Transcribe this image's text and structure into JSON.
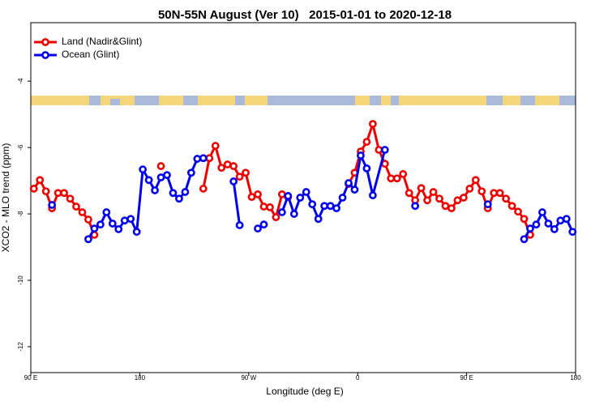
{
  "chart_data": {
    "type": "line",
    "title": "50N-55N August (Ver 10)   2015-01-01 to 2020-12-18",
    "xlabel": "Longitude (deg E)",
    "ylabel": "XCO2 - MLO trend (ppm)",
    "xlim": [
      90,
      540
    ],
    "ylim": [
      -12.78,
      -2.24
    ],
    "xticks": [
      {
        "value": 90,
        "label": "90 E"
      },
      {
        "value": 180,
        "label": "180"
      },
      {
        "value": 270,
        "label": "90 W"
      },
      {
        "value": 360,
        "label": "0"
      },
      {
        "value": 450,
        "label": "90 E"
      },
      {
        "value": 540,
        "label": "180"
      }
    ],
    "yticks": [
      -4,
      -6,
      -8,
      -10,
      -12
    ],
    "legend": "upper left",
    "series": [
      {
        "name": "Land (Nadir&Glint)",
        "color": "#ee0000",
        "x": [
          92.5,
          97.5,
          102.5,
          107.5,
          112.5,
          117.5,
          122.5,
          127.5,
          132.5,
          137.5,
          142.5,
          null,
          197.5,
          null,
          232.5,
          237.5,
          242.5,
          247.5,
          252.5,
          257.5,
          262.5,
          267.5,
          272.5,
          277.5,
          282.5,
          287.5,
          292.5,
          297.5,
          302.5,
          null,
          352.5,
          357.5,
          362.5,
          367.5,
          372.5,
          377.5,
          382.5,
          387.5,
          392.5,
          397.5,
          402.5,
          407.5,
          412.5,
          417.5,
          422.5,
          427.5,
          432.5,
          437.5,
          442.5,
          447.5,
          452.5,
          457.5,
          462.5,
          467.5,
          472.5,
          477.5,
          482.5,
          487.5,
          492.5,
          497.5,
          502.5
        ],
        "values": [
          -7.24,
          -6.98,
          -7.32,
          -7.83,
          -7.37,
          -7.37,
          -7.54,
          -7.78,
          -7.95,
          -8.17,
          -8.63,
          null,
          -6.56,
          null,
          -7.24,
          -6.32,
          -5.95,
          -6.61,
          -6.51,
          -6.56,
          -6.88,
          -6.76,
          -7.49,
          -7.41,
          -7.78,
          -7.8,
          -8.1,
          -7.41,
          -7.49,
          null,
          -7.1,
          -6.76,
          -6.12,
          -5.83,
          -5.29,
          -6.07,
          -6.49,
          -6.93,
          -6.93,
          -6.8,
          -7.37,
          -7.59,
          -7.22,
          -7.59,
          -7.34,
          -7.54,
          -7.76,
          -7.83,
          -7.59,
          -7.51,
          -7.24,
          -6.98,
          -7.32,
          -7.83,
          -7.37,
          -7.37,
          -7.54,
          -7.76,
          -7.93,
          -8.15,
          -8.63
        ]
      },
      {
        "name": "Ocean (Glint)",
        "color": "#0000ee",
        "x": [
          107.5,
          null,
          137.5,
          142.5,
          147.5,
          152.5,
          157.5,
          162.5,
          167.5,
          172.5,
          177.5,
          182.5,
          187.5,
          192.5,
          197.5,
          202.5,
          207.5,
          212.5,
          217.5,
          222.5,
          227.5,
          232.5,
          null,
          257.5,
          262.5,
          null,
          277.5,
          282.5,
          null,
          297.5,
          302.5,
          307.5,
          312.5,
          317.5,
          322.5,
          327.5,
          332.5,
          337.5,
          342.5,
          347.5,
          352.5,
          357.5,
          362.5,
          367.5,
          372.5,
          382.5,
          null,
          407.5,
          null,
          467.5,
          null,
          497.5,
          502.5,
          507.5,
          512.5,
          517.5,
          522.5,
          527.5,
          532.5,
          537.5
        ],
        "values": [
          -7.73,
          null,
          -8.76,
          -8.44,
          -8.32,
          -7.95,
          -8.29,
          -8.46,
          -8.2,
          -8.15,
          -8.54,
          -6.66,
          -6.98,
          -7.29,
          -6.9,
          -6.83,
          -7.37,
          -7.54,
          -7.34,
          -6.76,
          -6.34,
          -6.32,
          null,
          -7.02,
          -8.34,
          null,
          -8.44,
          -8.32,
          null,
          -7.95,
          -7.46,
          -8.0,
          -7.51,
          -7.34,
          -7.71,
          -8.15,
          -7.76,
          -7.76,
          -7.83,
          -7.51,
          -7.07,
          -7.27,
          -6.24,
          -6.63,
          -7.44,
          -6.07,
          null,
          -7.76,
          null,
          -7.71,
          null,
          -8.76,
          -8.44,
          -8.32,
          -7.95,
          -8.29,
          -8.46,
          -8.2,
          -8.15,
          -8.54
        ]
      }
    ]
  }
}
